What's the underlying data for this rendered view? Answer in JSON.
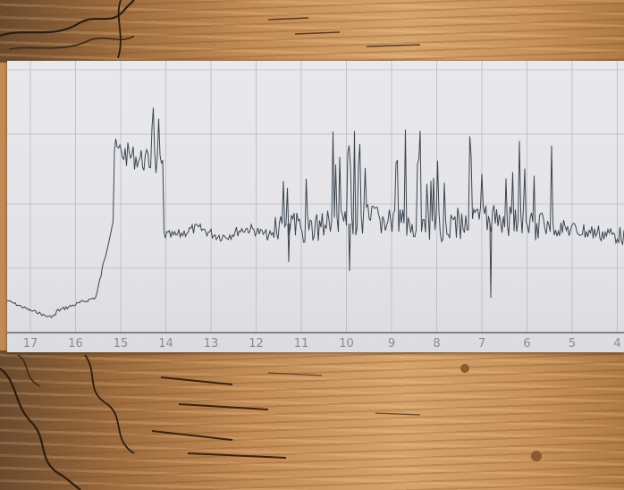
{
  "scene": {
    "subject": "seismograph recording strip",
    "background": "wood"
  },
  "scale": {
    "labels": [
      "17",
      "16",
      "15",
      "14",
      "13",
      "12",
      "11",
      "10",
      "9",
      "8",
      "7",
      "6",
      "5",
      "4"
    ]
  },
  "colors": {
    "paper": "#e6e6ea",
    "grid": "#b8b8c0",
    "trace": "#3c4650",
    "wood": "#c28b55"
  }
}
